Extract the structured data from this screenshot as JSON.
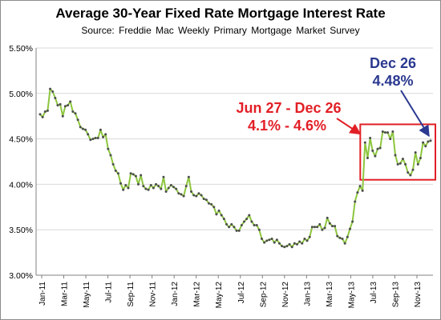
{
  "chart_data": {
    "type": "line",
    "title": "Average 30-Year Fixed Rate Mortgage Interest Rate",
    "subtitle": "Source:  Freddie  Mac Weekly  Primary  Mortgage Market Survey",
    "xlabel": "",
    "ylabel": "",
    "ylim": [
      3.0,
      5.5
    ],
    "y_ticks": [
      "3.00%",
      "3.50%",
      "4.00%",
      "4.50%",
      "5.00%",
      "5.50%"
    ],
    "x_ticks": [
      "Jan-11",
      "Mar-11",
      "May-11",
      "Jul-11",
      "Sep-11",
      "Nov-11",
      "Jan-12",
      "Mar-12",
      "May-12",
      "Jul-12",
      "Sep-12",
      "Nov-12",
      "Jan-13",
      "Mar-13",
      "May-13",
      "Jul-13",
      "Sep-13",
      "Nov-13"
    ],
    "grid": "horizontal",
    "line_color": "#8dc63f",
    "marker_color": "#4d4d4d",
    "series": [
      {
        "values": [
          4.77,
          4.74,
          4.8,
          4.81,
          5.05,
          5.02,
          4.95,
          4.87,
          4.88,
          4.75,
          4.86,
          4.87,
          4.91,
          4.8,
          4.78,
          4.71,
          4.63,
          4.61,
          4.6,
          4.55,
          4.49,
          4.5,
          4.51,
          4.51,
          4.6,
          4.52,
          4.55,
          4.39,
          4.32,
          4.22,
          4.15,
          4.12,
          4.01,
          3.94,
          3.99,
          3.96,
          4.12,
          4.11,
          4.09,
          4.0,
          4.1,
          3.98,
          3.95,
          3.94,
          3.99,
          3.96,
          4.0,
          3.98,
          3.95,
          4.08,
          3.92,
          3.96,
          3.99,
          3.97,
          3.95,
          3.9,
          3.89,
          3.87,
          3.98,
          4.08,
          3.92,
          3.88,
          3.87,
          3.9,
          3.88,
          3.84,
          3.83,
          3.79,
          3.78,
          3.75,
          3.67,
          3.71,
          3.66,
          3.62,
          3.56,
          3.53,
          3.56,
          3.53,
          3.49,
          3.49,
          3.55,
          3.59,
          3.62,
          3.66,
          3.59,
          3.55,
          3.55,
          3.5,
          3.4,
          3.36,
          3.38,
          3.39,
          3.4,
          3.36,
          3.39,
          3.35,
          3.32,
          3.31,
          3.32,
          3.34,
          3.31,
          3.35,
          3.34,
          3.37,
          3.35,
          3.4,
          3.38,
          3.42,
          3.53,
          3.53,
          3.53,
          3.56,
          3.5,
          3.52,
          3.63,
          3.57,
          3.54,
          3.54,
          3.43,
          3.41,
          3.4,
          3.35,
          3.42,
          3.51,
          3.59,
          3.81,
          3.91,
          3.98,
          3.93,
          4.46,
          4.29,
          4.51,
          4.37,
          4.31,
          4.39,
          4.4,
          4.58,
          4.57,
          4.57,
          4.5,
          4.58,
          4.32,
          4.22,
          4.23,
          4.28,
          4.22,
          4.13,
          4.1,
          4.16,
          4.35,
          4.22,
          4.29,
          4.46,
          4.42,
          4.47,
          4.48
        ]
      }
    ],
    "annotations": {
      "range_label": "Jun 27 - Dec 26",
      "range_values": "4.1% - 4.6%",
      "end_label": "Dec 26",
      "end_value": "4.48%",
      "range_color": "#e21f26",
      "end_color": "#2b3990"
    }
  }
}
